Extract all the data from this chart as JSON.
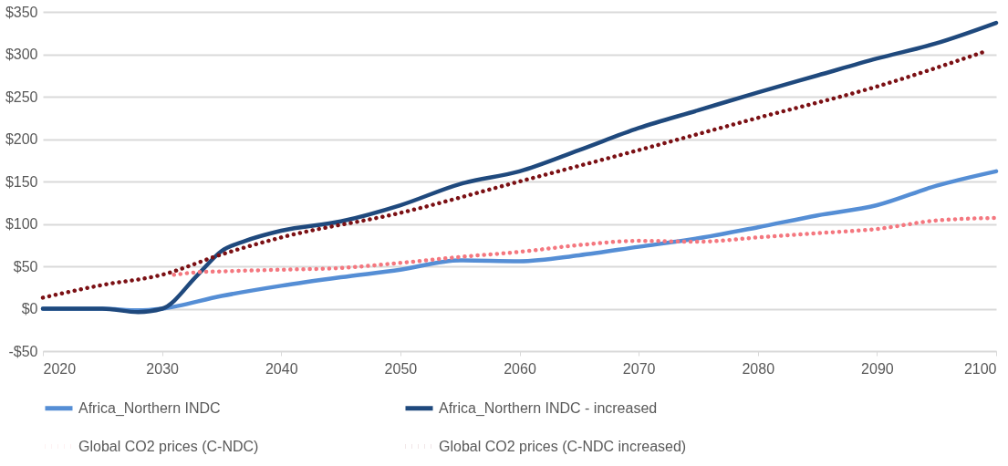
{
  "chart_data": {
    "type": "line",
    "xlim": [
      2020,
      2100
    ],
    "xticks": [
      2020,
      2030,
      2040,
      2050,
      2060,
      2070,
      2080,
      2090,
      2100
    ],
    "ylim": [
      -50,
      350
    ],
    "yticks": [
      {
        "value": -50,
        "label": "-$50"
      },
      {
        "value": 0,
        "label": "$0"
      },
      {
        "value": 50,
        "label": "$50"
      },
      {
        "value": 100,
        "label": "$100"
      },
      {
        "value": 150,
        "label": "$150"
      },
      {
        "value": 200,
        "label": "$200"
      },
      {
        "value": 250,
        "label": "$250"
      },
      {
        "value": 300,
        "label": "$300"
      },
      {
        "value": 350,
        "label": "$350"
      }
    ],
    "grid": "y",
    "legend": "bottom",
    "series": [
      {
        "name": "Africa_Northern INDC",
        "color": "#558ed5",
        "line_style": "solid",
        "x": [
          2020,
          2025,
          2028,
          2030,
          2035,
          2040,
          2045,
          2050,
          2055,
          2060,
          2065,
          2070,
          2075,
          2080,
          2085,
          2090,
          2095,
          2100
        ],
        "values": [
          0,
          0,
          -2,
          0,
          15,
          27,
          37,
          46,
          57,
          56,
          63,
          73,
          83,
          96,
          110,
          122,
          145,
          162
        ]
      },
      {
        "name": "Africa_Northern INDC - increased",
        "color": "#1f497d",
        "line_style": "solid",
        "x": [
          2020,
          2025,
          2028,
          2030,
          2033,
          2035,
          2037,
          2040,
          2045,
          2050,
          2055,
          2060,
          2065,
          2070,
          2075,
          2080,
          2085,
          2090,
          2095,
          2100
        ],
        "values": [
          0,
          0,
          -4,
          0,
          40,
          68,
          80,
          92,
          103,
          122,
          147,
          162,
          187,
          213,
          234,
          255,
          275,
          295,
          313,
          337
        ]
      },
      {
        "name": "Global CO2 prices (C-NDC)",
        "color": "#f4777f",
        "line_style": "dotted",
        "x": [
          2031,
          2033,
          2035,
          2040,
          2045,
          2050,
          2055,
          2060,
          2065,
          2070,
          2075,
          2080,
          2085,
          2090,
          2095,
          2100
        ],
        "values": [
          40,
          43,
          44,
          46,
          48,
          54,
          61,
          67,
          75,
          80,
          79,
          84,
          89,
          94,
          104,
          107
        ]
      },
      {
        "name": "Global CO2 prices (C-NDC increased)",
        "color": "#7b1014",
        "line_style": "dotted",
        "x": [
          2020,
          2025,
          2030,
          2035,
          2040,
          2050,
          2060,
          2070,
          2080,
          2090,
          2099
        ],
        "values": [
          13,
          28,
          40,
          64,
          84,
          113,
          150,
          187,
          225,
          262,
          303
        ]
      }
    ]
  }
}
